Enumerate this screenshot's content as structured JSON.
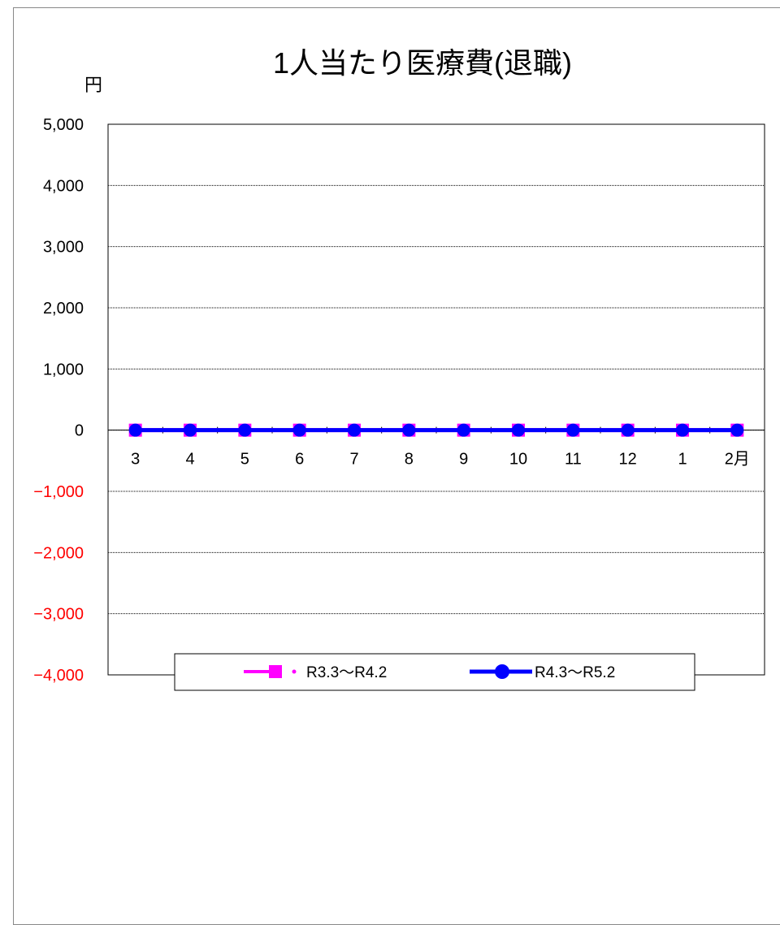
{
  "chart_data": {
    "type": "line",
    "title": "1人当たり医療費(退職)",
    "y_unit": "円",
    "categories": [
      "3",
      "4",
      "5",
      "6",
      "7",
      "8",
      "9",
      "10",
      "11",
      "12",
      "1",
      "2月"
    ],
    "ylim": [
      -4000,
      5000
    ],
    "yticks": [
      5000,
      4000,
      3000,
      2000,
      1000,
      0,
      -1000,
      -2000,
      -3000,
      -4000
    ],
    "ytick_labels": [
      "5,000",
      "4,000",
      "3,000",
      "2,000",
      "1,000",
      "0",
      "−1,000",
      "−2,000",
      "−3,000",
      "−4,000"
    ],
    "negative_tick_color": "#ff0000",
    "grid": true,
    "legend_position": "bottom",
    "series": [
      {
        "name": "R3.3～R4.2",
        "color": "#ff00ff",
        "marker": "square",
        "values": [
          0,
          0,
          0,
          0,
          0,
          0,
          0,
          0,
          0,
          0,
          0,
          0
        ]
      },
      {
        "name": "R4.3～R5.2",
        "color": "#0000ff",
        "marker": "circle",
        "values": [
          0,
          0,
          0,
          0,
          0,
          0,
          0,
          0,
          0,
          0,
          0,
          0
        ]
      }
    ]
  }
}
